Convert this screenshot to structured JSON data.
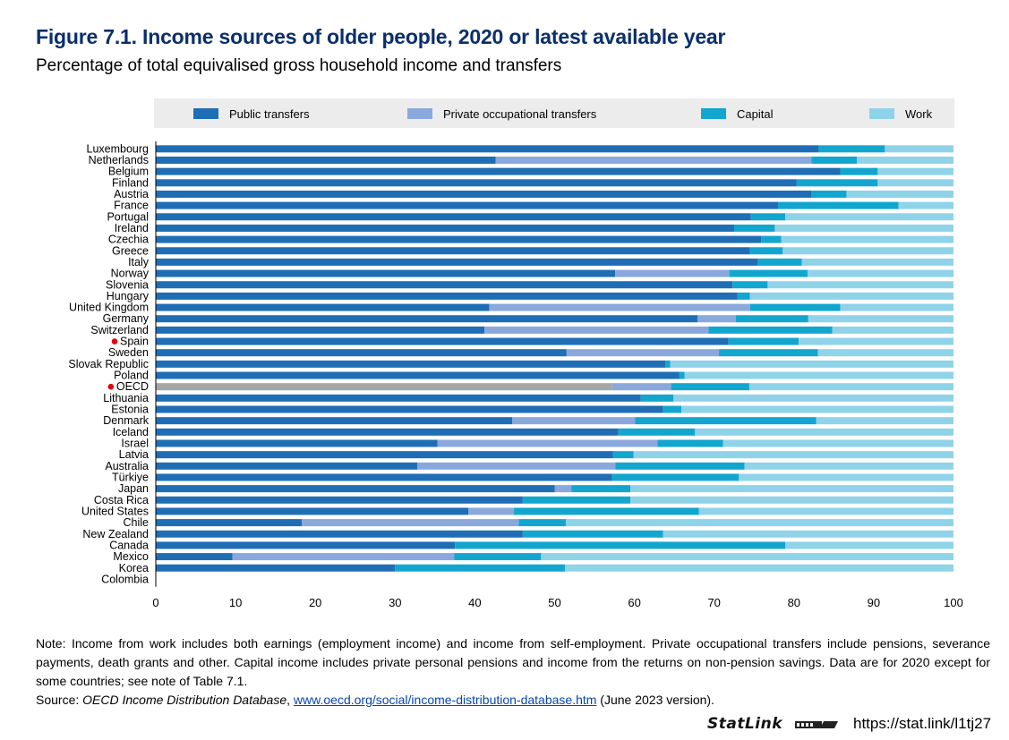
{
  "title": "Figure 7.1. Income sources of older people, 2020 or latest available year",
  "subtitle": "Percentage of total equivalised gross household income and transfers",
  "note": "Note: Income from work includes both earnings (employment income) and income from self-employment. Private occupational transfers include pensions, severance payments, death grants and other. Capital income includes private personal pensions and income from the returns on non-pension savings. Data are for 2020 except for some countries; see note of Table 7.1.",
  "source": {
    "prefix": "Source: ",
    "database": "OECD Income Distribution Database",
    "sep": ", ",
    "link": "www.oecd.org/social/income-distribution-database.htm",
    "suffix": " (June 2023 version)."
  },
  "statlink": {
    "label": "StatLink",
    "url": "https://stat.link/l1tj27"
  },
  "chart_data": {
    "type": "bar",
    "orientation": "horizontal",
    "stacked": true,
    "xlim": [
      0,
      100
    ],
    "xticks": [
      0,
      10,
      20,
      30,
      40,
      50,
      60,
      70,
      80,
      90,
      100
    ],
    "legend_position": "top",
    "highlighted": [
      "Spain",
      "OECD"
    ],
    "colors": {
      "Public transfers": "#1f6eb5",
      "Private occupational transfers": "#8aa8dc",
      "Capital": "#12a6cf",
      "Work": "#8fd3e9",
      "oecd_public": "#a6a6a6",
      "marker": "#e8000b",
      "legend_bg": "#ececec"
    },
    "categories": [
      "Luxembourg",
      "Netherlands",
      "Belgium",
      "Finland",
      "Austria",
      "France",
      "Portugal",
      "Ireland",
      "Czechia",
      "Greece",
      "Italy",
      "Norway",
      "Slovenia",
      "Hungary",
      "United Kingdom",
      "Germany",
      "Switzerland",
      "Spain",
      "Sweden",
      "Slovak Republic",
      "Poland",
      "OECD",
      "Lithuania",
      "Estonia",
      "Denmark",
      "Iceland",
      "Israel",
      "Latvia",
      "Australia",
      "Türkiye",
      "Japan",
      "Costa Rica",
      "United States",
      "Chile",
      "New Zealand",
      "Canada",
      "Mexico",
      "Korea",
      "Colombia"
    ],
    "series": [
      {
        "name": "Public transfers",
        "values": [
          83.1,
          42.6,
          85.8,
          80.3,
          82.2,
          78.0,
          74.6,
          72.5,
          75.9,
          74.5,
          75.5,
          57.6,
          72.3,
          72.9,
          41.8,
          67.9,
          41.2,
          71.8,
          51.5,
          63.9,
          65.6,
          57.2,
          60.8,
          63.6,
          44.7,
          58.0,
          35.3,
          57.3,
          32.8,
          57.2,
          50.0,
          46.0,
          39.2,
          18.3,
          46.0,
          37.5,
          9.6,
          30.0,
          0
        ]
      },
      {
        "name": "Private occupational transfers",
        "values": [
          0,
          39.6,
          0,
          0,
          0,
          0,
          0,
          0,
          0,
          0,
          0,
          14.3,
          0,
          0,
          32.7,
          4.8,
          28.1,
          0,
          19.1,
          0,
          0,
          7.4,
          0,
          0,
          15.4,
          0,
          27.6,
          0,
          24.8,
          0,
          2.1,
          0,
          5.7,
          27.2,
          0,
          0,
          27.8,
          0,
          0
        ]
      },
      {
        "name": "Capital",
        "values": [
          8.3,
          5.7,
          4.7,
          10.2,
          4.4,
          15.1,
          4.3,
          5.1,
          2.5,
          4.1,
          5.5,
          9.8,
          4.4,
          1.6,
          11.3,
          9.1,
          15.5,
          8.8,
          12.4,
          0.6,
          0.7,
          9.8,
          4.1,
          2.3,
          22.7,
          9.6,
          8.2,
          2.6,
          16.2,
          15.9,
          7.4,
          13.5,
          23.2,
          5.9,
          17.6,
          41.4,
          10.9,
          21.3,
          0
        ]
      },
      {
        "name": "Work",
        "values": [
          8.6,
          12.1,
          9.5,
          9.5,
          13.4,
          6.9,
          21.1,
          22.4,
          21.6,
          21.4,
          19.0,
          18.3,
          23.3,
          25.5,
          14.2,
          18.2,
          15.2,
          19.4,
          17.0,
          35.5,
          33.7,
          25.6,
          35.1,
          34.1,
          17.2,
          32.4,
          28.9,
          40.1,
          26.2,
          26.9,
          40.5,
          40.5,
          31.9,
          48.6,
          36.4,
          21.1,
          51.7,
          48.7,
          0
        ]
      }
    ]
  }
}
